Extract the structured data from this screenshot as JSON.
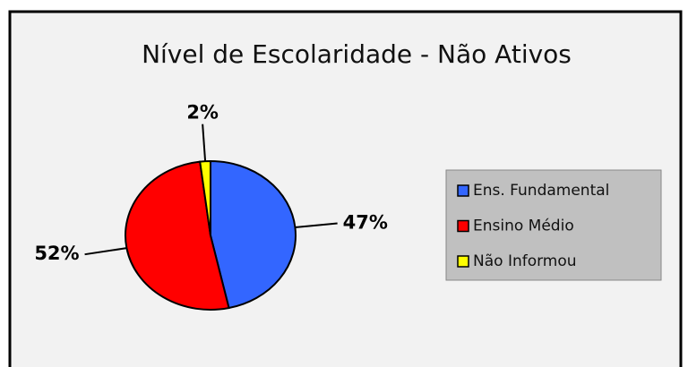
{
  "chart_data": {
    "type": "pie",
    "title": "Nível de Escolaridade - Não Ativos",
    "categories": [
      "Ens. Fundamental",
      "Ensino Médio",
      "Não Informou"
    ],
    "values": [
      47,
      52,
      2
    ],
    "value_labels": [
      "47%",
      "52%",
      "2%"
    ],
    "colors": [
      "#3366ff",
      "#ff0000",
      "#ffff00"
    ],
    "legend": "right"
  }
}
